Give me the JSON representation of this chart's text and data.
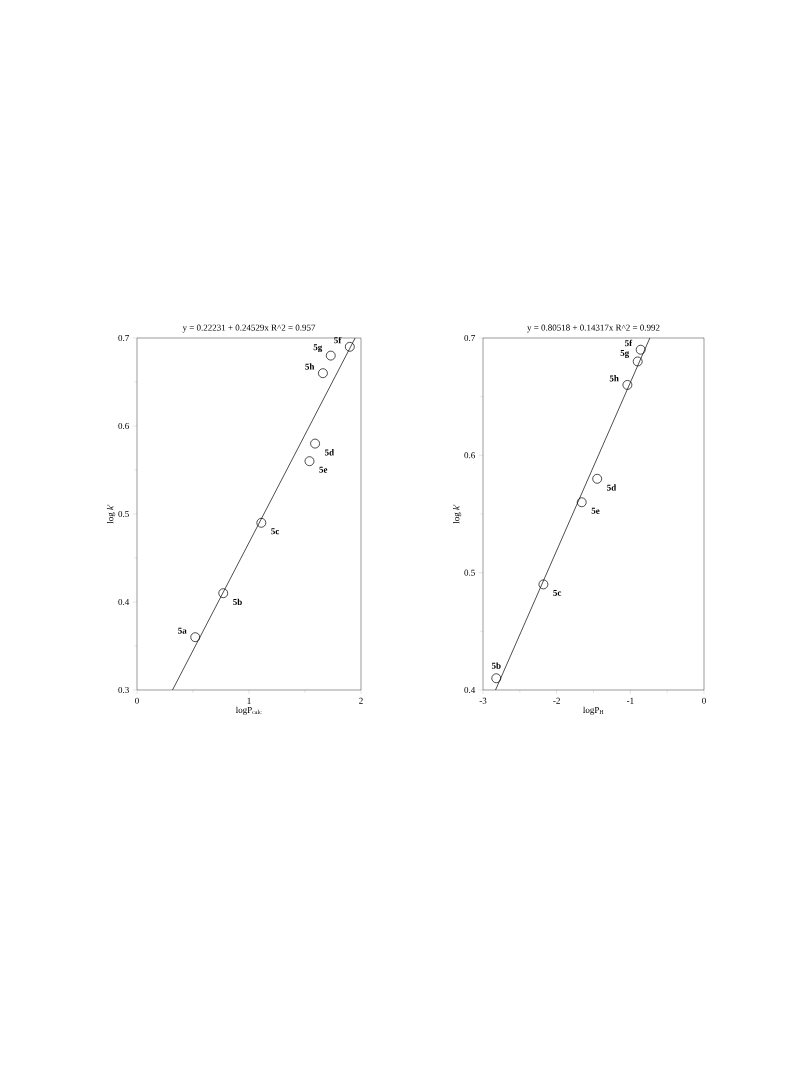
{
  "chart_data": [
    {
      "type": "scatter",
      "title": "y = 0.22231 + 0.24529x   R^2 = 0.957",
      "xlabel": "logP$_{calc}$",
      "ylabel": "log *k*'",
      "xlim": [
        0,
        2
      ],
      "ylim": [
        0.3,
        0.7
      ],
      "xticks": [
        0,
        1,
        2
      ],
      "yticks": [
        0.3,
        0.4,
        0.5,
        0.6,
        0.7
      ],
      "grid": false,
      "series": [
        {
          "marker": "circle",
          "color": "#000000",
          "x": [
            0.52,
            0.77,
            1.11,
            1.59,
            1.54,
            1.9,
            1.73,
            1.66
          ],
          "values": [
            0.36,
            0.41,
            0.49,
            0.58,
            0.56,
            0.69,
            0.68,
            0.66
          ]
        },
        {
          "type": "line",
          "color": "#000000",
          "x": [
            0.317,
            1.948
          ],
          "values": [
            0.3,
            0.7
          ]
        }
      ],
      "annotations": [
        {
          "text": "5a",
          "x": 0.52,
          "y": 0.36
        },
        {
          "text": "5b",
          "x": 0.77,
          "y": 0.41
        },
        {
          "text": "5c",
          "x": 1.11,
          "y": 0.49
        },
        {
          "text": "5d",
          "x": 1.59,
          "y": 0.58
        },
        {
          "text": "5e",
          "x": 1.54,
          "y": 0.56
        },
        {
          "text": "5f",
          "x": 1.9,
          "y": 0.69
        },
        {
          "text": "5g",
          "x": 1.73,
          "y": 0.68
        },
        {
          "text": "5h",
          "x": 1.66,
          "y": 0.66
        }
      ]
    },
    {
      "type": "scatter",
      "title": "y = 0.80518 + 0.14317x   R^2 = 0.992",
      "xlabel": "logP$_{H}$",
      "ylabel": "log *k*'",
      "xlim": [
        -3,
        0
      ],
      "ylim": [
        0.4,
        0.7
      ],
      "xticks": [
        -3,
        -2,
        -1,
        0
      ],
      "yticks": [
        0.4,
        0.5,
        0.6,
        0.7
      ],
      "grid": false,
      "series": [
        {
          "marker": "circle",
          "color": "#000000",
          "x": [
            -2.82,
            -2.18,
            -1.45,
            -1.66,
            -0.86,
            -0.9,
            -1.04
          ],
          "values": [
            0.41,
            0.49,
            0.58,
            0.56,
            0.69,
            0.68,
            0.66
          ]
        },
        {
          "type": "line",
          "color": "#000000",
          "x": [
            -2.83,
            -0.735
          ],
          "values": [
            0.4,
            0.7
          ]
        }
      ],
      "annotations": [
        {
          "text": "5b",
          "x": -2.82,
          "y": 0.41
        },
        {
          "text": "5c",
          "x": -2.18,
          "y": 0.49
        },
        {
          "text": "5d",
          "x": -1.45,
          "y": 0.58
        },
        {
          "text": "5e",
          "x": -1.66,
          "y": 0.56
        },
        {
          "text": "5f",
          "x": -0.86,
          "y": 0.69
        },
        {
          "text": "5g",
          "x": -0.9,
          "y": 0.68
        },
        {
          "text": "5h",
          "x": -1.04,
          "y": 0.66
        }
      ]
    }
  ]
}
